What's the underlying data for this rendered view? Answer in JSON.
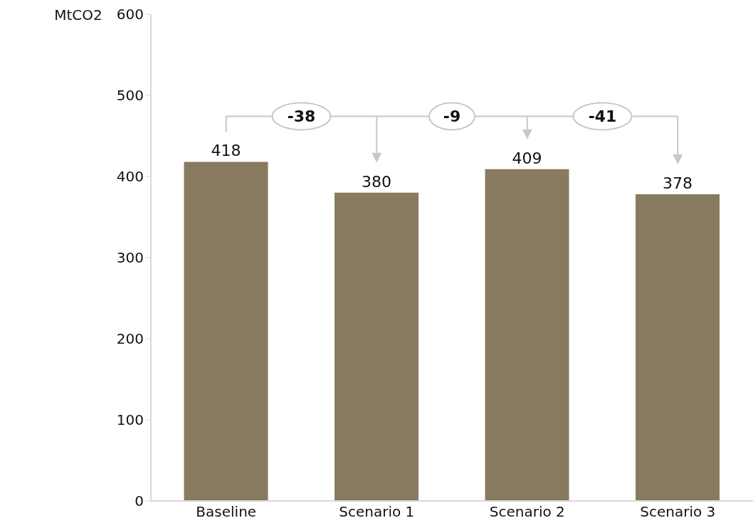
{
  "chart_data": {
    "type": "bar",
    "ylabel": "MtCO2",
    "categories": [
      "Baseline",
      "Scenario 1",
      "Scenario 2",
      "Scenario 3"
    ],
    "values": [
      418,
      380,
      409,
      378
    ],
    "color": "#877a5e",
    "ylim": [
      0,
      600
    ],
    "yticks": [
      0,
      100,
      200,
      300,
      400,
      500,
      600
    ],
    "data_labels": true,
    "annotations": [
      "-38",
      "-9",
      "-41"
    ]
  }
}
